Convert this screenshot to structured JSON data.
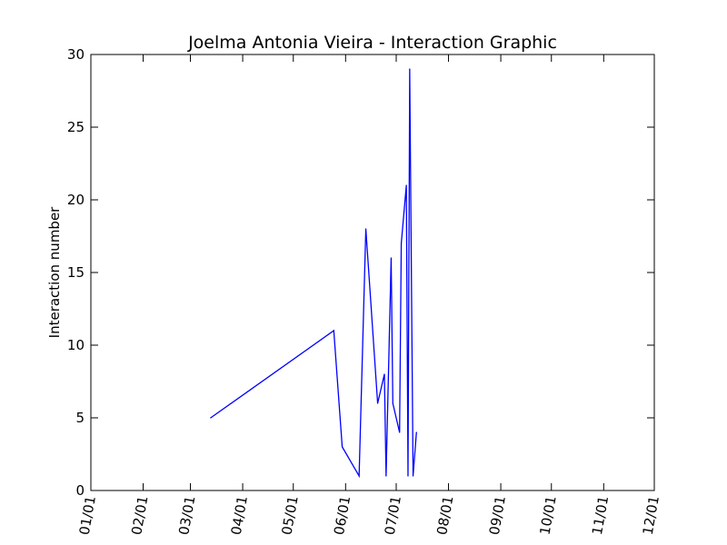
{
  "chart_data": {
    "type": "line",
    "title": "Joelma Antonia Vieira - Interaction Graphic",
    "xlabel": "",
    "ylabel": "Interaction number",
    "x_tick_labels": [
      "01/01",
      "02/01",
      "03/01",
      "04/01",
      "05/01",
      "06/01",
      "07/01",
      "08/01",
      "09/01",
      "10/01",
      "11/01",
      "12/01"
    ],
    "y_tick_labels": [
      "0",
      "5",
      "10",
      "15",
      "20",
      "25",
      "30"
    ],
    "ylim": [
      0,
      30
    ],
    "grid": false,
    "series_color": "#0000ff",
    "x_ticks_months": [
      1,
      2,
      3,
      4,
      5,
      6,
      7,
      8,
      9,
      10,
      11,
      12
    ],
    "points": [
      {
        "x": "03/13",
        "y": 5
      },
      {
        "x": "05/25",
        "y": 11
      },
      {
        "x": "05/30",
        "y": 3
      },
      {
        "x": "06/09",
        "y": 1
      },
      {
        "x": "06/13",
        "y": 18
      },
      {
        "x": "06/20",
        "y": 6
      },
      {
        "x": "06/24",
        "y": 8
      },
      {
        "x": "06/25",
        "y": 1
      },
      {
        "x": "06/28",
        "y": 16
      },
      {
        "x": "06/29",
        "y": 6
      },
      {
        "x": "07/03",
        "y": 4
      },
      {
        "x": "07/04",
        "y": 17
      },
      {
        "x": "07/07",
        "y": 21
      },
      {
        "x": "07/08",
        "y": 1
      },
      {
        "x": "07/09",
        "y": 29
      },
      {
        "x": "07/11",
        "y": 1
      },
      {
        "x": "07/13",
        "y": 4
      }
    ]
  }
}
